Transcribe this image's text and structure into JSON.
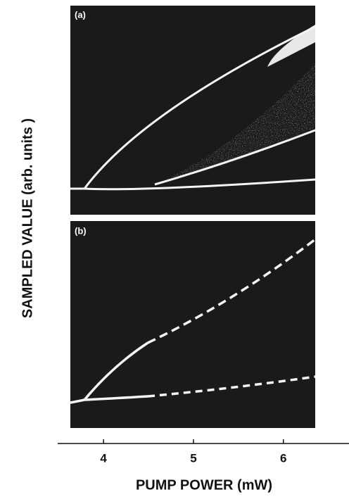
{
  "chart_data": {
    "type": "line",
    "panel_labels": [
      "(a)",
      "(b)"
    ],
    "xlabel": "PUMP POWER (mW)",
    "ylabel": "SAMPLED VALUE  (arb. units )",
    "xlim": [
      3.49,
      6.73
    ],
    "xticks": [
      4,
      5,
      6
    ]
  }
}
